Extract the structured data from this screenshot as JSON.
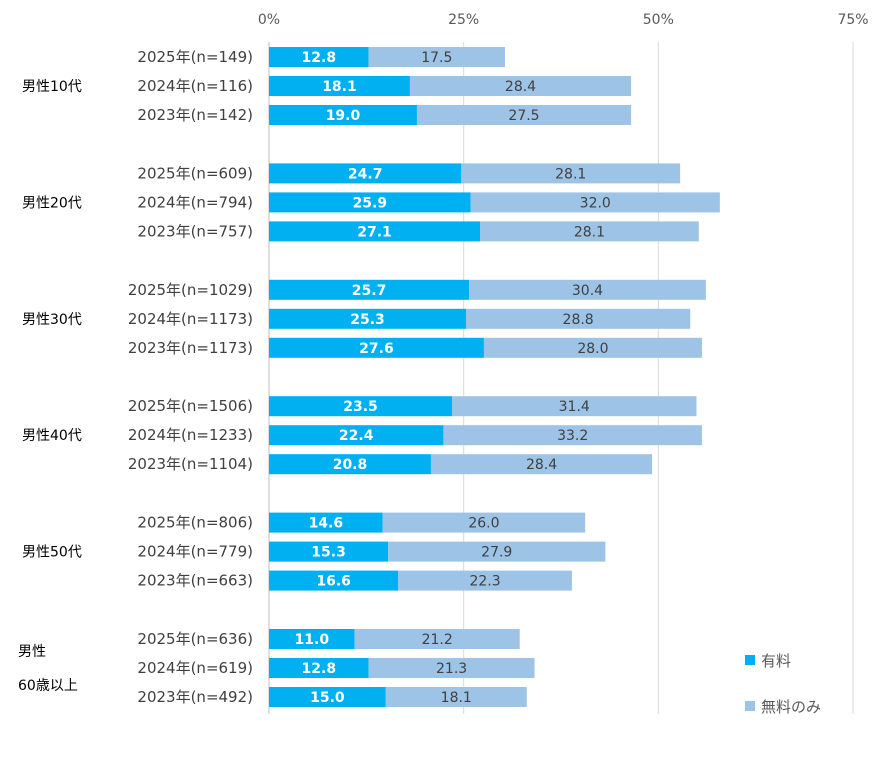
{
  "chart_data": {
    "type": "bar",
    "orientation": "horizontal",
    "stacked": true,
    "xlim": [
      0,
      75
    ],
    "x_ticks": [
      "0%",
      "25%",
      "50%",
      "75%"
    ],
    "grid": true,
    "legend_placement": "bottom-right",
    "series": [
      {
        "name": "有料",
        "color": "#00b0f0"
      },
      {
        "name": "無料のみ",
        "color": "#9dc3e6"
      }
    ],
    "groups": [
      {
        "label": [
          "男性10代"
        ],
        "rows": [
          {
            "label": "2025年(n=149)",
            "values": [
              12.8,
              17.5
            ]
          },
          {
            "label": "2024年(n=116)",
            "values": [
              18.1,
              28.4
            ]
          },
          {
            "label": "2023年(n=142)",
            "values": [
              19.0,
              27.5
            ]
          }
        ]
      },
      {
        "label": [
          "男性20代"
        ],
        "rows": [
          {
            "label": "2025年(n=609)",
            "values": [
              24.7,
              28.1
            ]
          },
          {
            "label": "2024年(n=794)",
            "values": [
              25.9,
              32.0
            ]
          },
          {
            "label": "2023年(n=757)",
            "values": [
              27.1,
              28.1
            ]
          }
        ]
      },
      {
        "label": [
          "男性30代"
        ],
        "rows": [
          {
            "label": "2025年(n=1029)",
            "values": [
              25.7,
              30.4
            ]
          },
          {
            "label": "2024年(n=1173)",
            "values": [
              25.3,
              28.8
            ]
          },
          {
            "label": "2023年(n=1173)",
            "values": [
              27.6,
              28.0
            ]
          }
        ]
      },
      {
        "label": [
          "男性40代"
        ],
        "rows": [
          {
            "label": "2025年(n=1506)",
            "values": [
              23.5,
              31.4
            ]
          },
          {
            "label": "2024年(n=1233)",
            "values": [
              22.4,
              33.2
            ]
          },
          {
            "label": "2023年(n=1104)",
            "values": [
              20.8,
              28.4
            ]
          }
        ]
      },
      {
        "label": [
          "男性50代"
        ],
        "rows": [
          {
            "label": "2025年(n=806)",
            "values": [
              14.6,
              26.0
            ]
          },
          {
            "label": "2024年(n=779)",
            "values": [
              15.3,
              27.9
            ]
          },
          {
            "label": "2023年(n=663)",
            "values": [
              16.6,
              22.3
            ]
          }
        ]
      },
      {
        "label": [
          "男性",
          "60歳以上"
        ],
        "rows": [
          {
            "label": "2025年(n=636)",
            "values": [
              11.0,
              21.2
            ]
          },
          {
            "label": "2024年(n=619)",
            "values": [
              12.8,
              21.3
            ]
          },
          {
            "label": "2023年(n=492)",
            "values": [
              15.0,
              18.1
            ]
          }
        ]
      }
    ]
  }
}
